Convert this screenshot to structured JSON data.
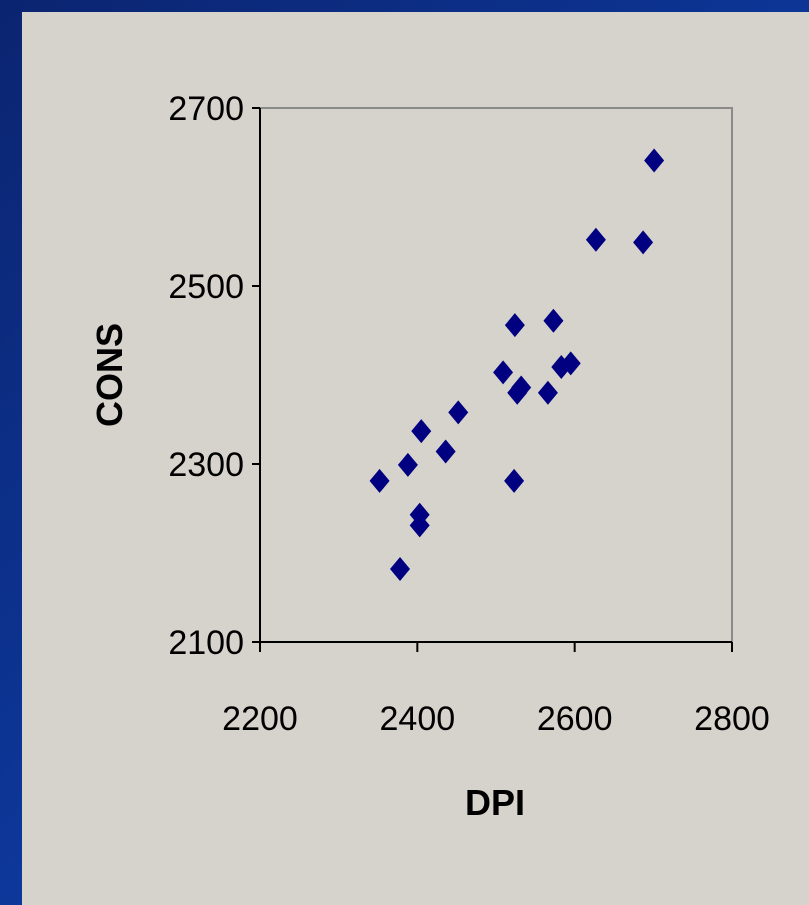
{
  "chart_data": {
    "type": "scatter",
    "title": "",
    "xlabel": "DPI",
    "ylabel": "CONS",
    "xlim": [
      2200,
      2800
    ],
    "ylim": [
      2100,
      2700
    ],
    "xticks": [
      "2200",
      "2400",
      "2600",
      "2800"
    ],
    "yticks": [
      "2100",
      "2300",
      "2500",
      "2700"
    ],
    "grid": false,
    "legend": "none",
    "marker": "diamond",
    "marker_color": "#000080",
    "background_color": "#d6d2cc",
    "points": [
      {
        "x": 2352,
        "y": 2281
      },
      {
        "x": 2378,
        "y": 2182
      },
      {
        "x": 2388,
        "y": 2299
      },
      {
        "x": 2403,
        "y": 2231
      },
      {
        "x": 2403,
        "y": 2243
      },
      {
        "x": 2405,
        "y": 2337
      },
      {
        "x": 2436,
        "y": 2314
      },
      {
        "x": 2452,
        "y": 2358
      },
      {
        "x": 2509,
        "y": 2403
      },
      {
        "x": 2523,
        "y": 2281
      },
      {
        "x": 2524,
        "y": 2456
      },
      {
        "x": 2527,
        "y": 2380
      },
      {
        "x": 2532,
        "y": 2386
      },
      {
        "x": 2566,
        "y": 2380
      },
      {
        "x": 2573,
        "y": 2461
      },
      {
        "x": 2583,
        "y": 2409
      },
      {
        "x": 2595,
        "y": 2413
      },
      {
        "x": 2627,
        "y": 2552
      },
      {
        "x": 2687,
        "y": 2549
      },
      {
        "x": 2701,
        "y": 2641
      }
    ]
  }
}
